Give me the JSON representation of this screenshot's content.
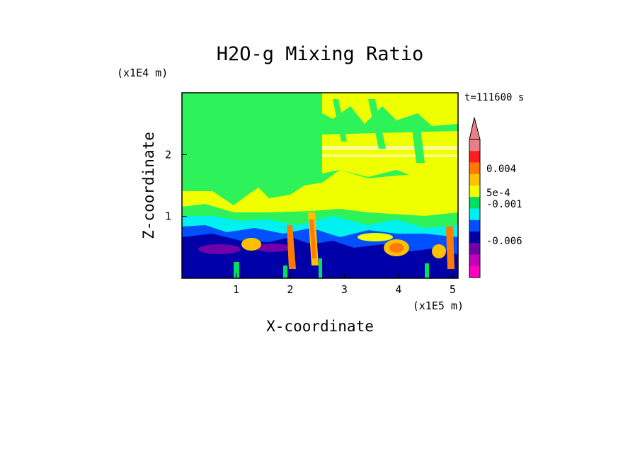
{
  "chart_data": {
    "type": "heatmap",
    "title": "H2O-g Mixing Ratio",
    "xlabel": "X-coordinate",
    "ylabel": "Z-coordinate",
    "x_unit": "(x1E5 m)",
    "y_unit": "(x1E4 m)",
    "time_label": "t=111600 s",
    "x_ticks": [
      "1",
      "2",
      "3",
      "4",
      "5"
    ],
    "x_tick_values": [
      1,
      2,
      3,
      4,
      5
    ],
    "y_ticks": [
      "1",
      "2"
    ],
    "y_tick_values": [
      1,
      2
    ],
    "xlim": [
      0,
      5.1
    ],
    "ylim": [
      0,
      3.0
    ],
    "colorbar": {
      "labels": [
        "0.004",
        "5e-4",
        "-0.001",
        "-0.006"
      ],
      "colors": [
        "#e8808a",
        "#ff1e1e",
        "#ff7a00",
        "#ffc000",
        "#f0ff00",
        "#00e060",
        "#00f0f0",
        "#0050ff",
        "#0000a8",
        "#7000a8",
        "#c000b8",
        "#ff00c0"
      ],
      "top_extension": true
    },
    "colors": {
      "upper_background": "#2ef25a",
      "mid_band": "#f0ff00",
      "cyan_band": "#00f0f0",
      "blue_band": "#0050ff",
      "dark_blue": "#0000a8",
      "purple": "#7000a8",
      "orange": "#ff7a00",
      "light_orange": "#ffc000"
    }
  }
}
